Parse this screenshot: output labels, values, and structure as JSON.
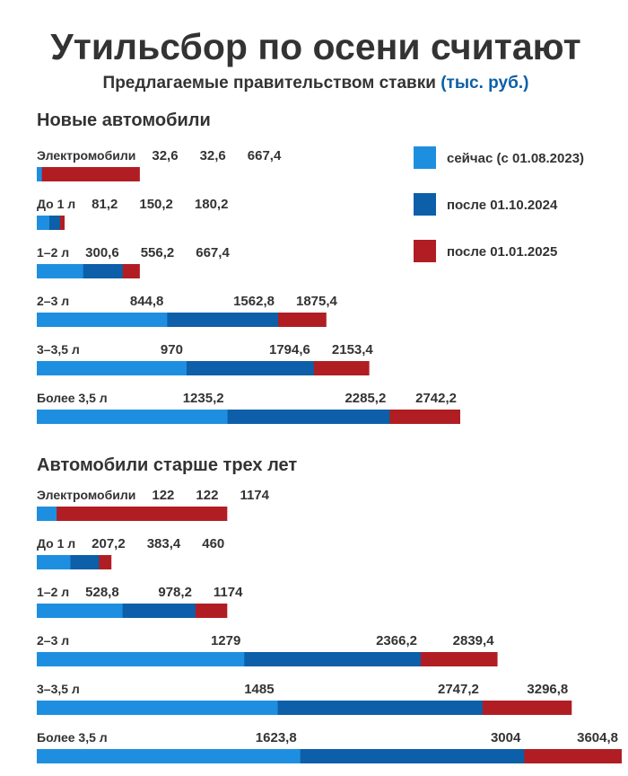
{
  "header": {
    "title": "Утильсбор по осени считают",
    "subtitle": "Предлагаемые правительством ставки",
    "unit": "(тыс. руб.)"
  },
  "chart_data": [
    {
      "type": "bar",
      "orientation": "horizontal",
      "title": "Новые автомобили",
      "legend": true,
      "categories": [
        "Электромобили",
        "До 1 л",
        "1–2 л",
        "2–3 л",
        "3–3,5 л",
        "Более 3,5 л"
      ],
      "series": [
        {
          "name": "сейчас (с 01.08.2023)",
          "color": "#1e8fe0",
          "values": [
            32.6,
            81.2,
            300.6,
            844.8,
            970,
            1235.2
          ],
          "value_labels": [
            "32,6",
            "81,2",
            "300,6",
            "844,8",
            "970",
            "1235,2"
          ]
        },
        {
          "name": "после 01.10.2024",
          "color": "#0c5fa8",
          "values": [
            32.6,
            150.2,
            556.2,
            1562.8,
            1794.6,
            2285.2
          ],
          "value_labels": [
            "32,6",
            "150,2",
            "556,2",
            "1562,8",
            "1794,6",
            "2285,2"
          ]
        },
        {
          "name": "после 01.01.2025",
          "color": "#b01e23",
          "values": [
            667.4,
            180.2,
            667.4,
            1875.4,
            2153.4,
            2742.2
          ],
          "value_labels": [
            "667,4",
            "180,2",
            "667,4",
            "1875,4",
            "2153,4",
            "2742,2"
          ]
        }
      ]
    },
    {
      "type": "bar",
      "orientation": "horizontal",
      "title": "Автомобили старше трех лет",
      "legend": false,
      "categories": [
        "Электромобили",
        "До 1 л",
        "1–2 л",
        "2–3 л",
        "3–3,5 л",
        "Более 3,5 л"
      ],
      "series": [
        {
          "color": "#1e8fe0",
          "values": [
            122,
            207.2,
            528.8,
            1279,
            1485,
            1623.8
          ],
          "value_labels": [
            "122",
            "207,2",
            "528,8",
            "1279",
            "1485",
            "1623,8"
          ]
        },
        {
          "color": "#0c5fa8",
          "values": [
            122,
            383.4,
            978.2,
            2366.2,
            2747.2,
            3004
          ],
          "value_labels": [
            "122",
            "383,4",
            "978,2",
            "2366,2",
            "2747,2",
            "3004"
          ]
        },
        {
          "color": "#b01e23",
          "values": [
            1174,
            460,
            1174,
            2839.4,
            3296.8,
            3604.8
          ],
          "value_labels": [
            "1174",
            "460",
            "1174",
            "2839,4",
            "3296,8",
            "3604,8"
          ]
        }
      ]
    }
  ]
}
